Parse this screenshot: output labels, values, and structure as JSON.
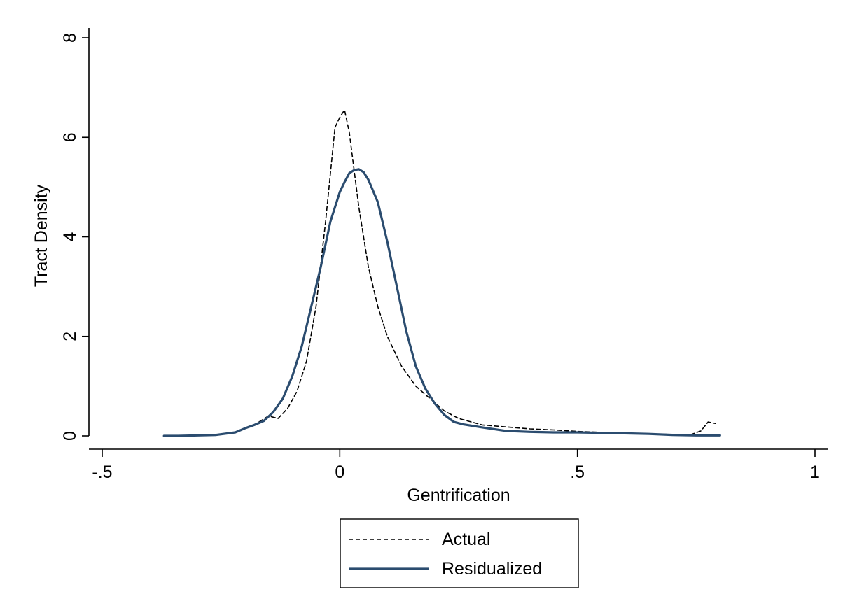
{
  "chart_data": {
    "type": "line",
    "xlabel": "Gentrification",
    "ylabel": "Tract Density",
    "xlim": [
      -0.5,
      1
    ],
    "ylim": [
      0,
      8
    ],
    "x_ticks": [
      -0.5,
      0,
      0.5,
      1
    ],
    "x_tick_labels": [
      "-.5",
      "0",
      ".5",
      "1"
    ],
    "y_ticks": [
      0,
      2,
      4,
      6,
      8
    ],
    "y_tick_labels": [
      "0",
      "2",
      "4",
      "6",
      "8"
    ],
    "grid": false,
    "legend_position": "bottom",
    "series": [
      {
        "name": "Actual",
        "style": "dashed",
        "color": "#000000",
        "x": [
          -0.17,
          -0.15,
          -0.13,
          -0.11,
          -0.09,
          -0.07,
          -0.05,
          -0.03,
          -0.01,
          0.0,
          0.01,
          0.02,
          0.04,
          0.06,
          0.08,
          0.1,
          0.13,
          0.16,
          0.19,
          0.22,
          0.25,
          0.3,
          0.35,
          0.4,
          0.45,
          0.5,
          0.55,
          0.6,
          0.65,
          0.7,
          0.74,
          0.76,
          0.775,
          0.79
        ],
        "y": [
          0.28,
          0.4,
          0.35,
          0.55,
          0.9,
          1.5,
          2.6,
          4.3,
          6.2,
          6.4,
          6.55,
          6.1,
          4.6,
          3.4,
          2.6,
          2.0,
          1.4,
          1.0,
          0.75,
          0.5,
          0.35,
          0.22,
          0.18,
          0.14,
          0.12,
          0.09,
          0.07,
          0.05,
          0.04,
          0.03,
          0.03,
          0.1,
          0.28,
          0.25
        ]
      },
      {
        "name": "Residualized",
        "style": "solid",
        "color": "#2b4c6f",
        "x": [
          -0.37,
          -0.34,
          -0.3,
          -0.26,
          -0.22,
          -0.2,
          -0.18,
          -0.16,
          -0.14,
          -0.12,
          -0.1,
          -0.08,
          -0.06,
          -0.04,
          -0.02,
          0.0,
          0.01,
          0.02,
          0.03,
          0.04,
          0.05,
          0.06,
          0.08,
          0.1,
          0.12,
          0.14,
          0.16,
          0.18,
          0.2,
          0.22,
          0.24,
          0.26,
          0.3,
          0.35,
          0.4,
          0.45,
          0.5,
          0.55,
          0.6,
          0.65,
          0.7,
          0.75,
          0.8
        ],
        "y": [
          0.0,
          0.0,
          0.01,
          0.02,
          0.07,
          0.15,
          0.22,
          0.3,
          0.48,
          0.75,
          1.2,
          1.8,
          2.6,
          3.4,
          4.3,
          4.9,
          5.1,
          5.28,
          5.34,
          5.36,
          5.3,
          5.15,
          4.7,
          3.9,
          3.0,
          2.1,
          1.4,
          0.95,
          0.65,
          0.42,
          0.28,
          0.23,
          0.17,
          0.1,
          0.08,
          0.07,
          0.07,
          0.06,
          0.05,
          0.04,
          0.02,
          0.01,
          0.01
        ]
      }
    ]
  }
}
